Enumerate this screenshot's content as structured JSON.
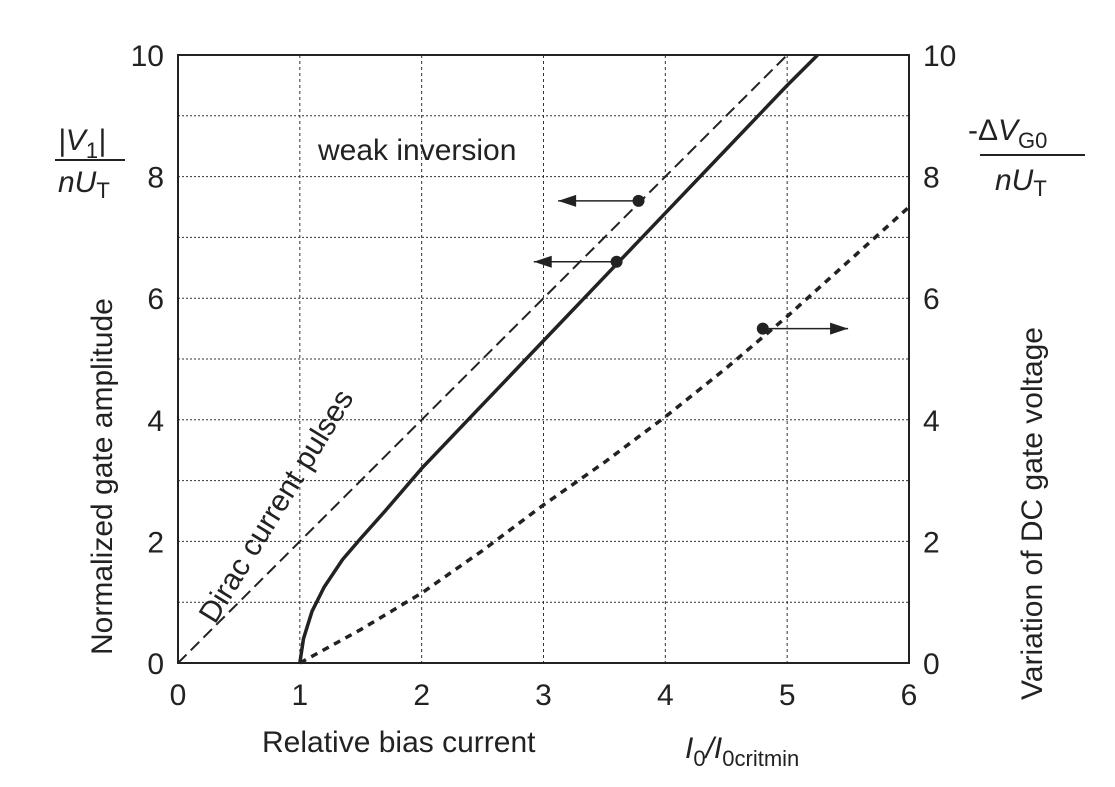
{
  "chart_data": {
    "type": "line",
    "xlabel": "Relative bias current",
    "xlabel_symbol": "I0/I0critmin",
    "ylabel_left": "Normalized gate amplitude",
    "ylabel_left_symbol": {
      "num": "|V1|",
      "den": "nUT"
    },
    "ylabel_right": "Variation of DC gate voltage",
    "ylabel_right_symbol": {
      "num": "-ΔVG0",
      "den": "nUT"
    },
    "xlim": [
      0,
      6
    ],
    "ylim": [
      0,
      10
    ],
    "xticks": [
      "0",
      "1",
      "2",
      "3",
      "4",
      "5",
      "6"
    ],
    "yticks": [
      "0",
      "2",
      "4",
      "6",
      "8",
      "10"
    ],
    "grid": true,
    "annotations": [
      "weak inversion",
      "Dirac current pulses"
    ],
    "series": [
      {
        "style": "dashed",
        "axis": "left",
        "x": [
          0,
          5
        ],
        "y": [
          0,
          10
        ]
      },
      {
        "style": "solid",
        "axis": "left",
        "x": [
          1,
          1.03,
          1.1,
          1.2,
          1.35,
          1.5,
          1.7,
          2,
          2.5,
          3,
          3.5,
          4,
          4.5,
          5,
          5.25
        ],
        "y": [
          0,
          0.4,
          0.85,
          1.25,
          1.7,
          2.05,
          2.5,
          3.2,
          4.25,
          5.3,
          6.35,
          7.4,
          8.45,
          9.5,
          10
        ]
      },
      {
        "style": "dotted",
        "axis": "right",
        "x": [
          1,
          1.5,
          2,
          2.5,
          3,
          3.5,
          4,
          4.5,
          5,
          5.5,
          6
        ],
        "y": [
          0,
          0.55,
          1.15,
          1.85,
          2.6,
          3.3,
          4.05,
          4.85,
          5.7,
          6.6,
          7.5
        ]
      }
    ],
    "markers": [
      {
        "x": 3.78,
        "y": 7.6,
        "arrow": "left",
        "to": 3.12
      },
      {
        "x": 3.6,
        "y": 6.6,
        "arrow": "left",
        "to": 2.92
      },
      {
        "x": 4.8,
        "y": 5.5,
        "arrow": "right",
        "to": 5.5
      }
    ]
  }
}
